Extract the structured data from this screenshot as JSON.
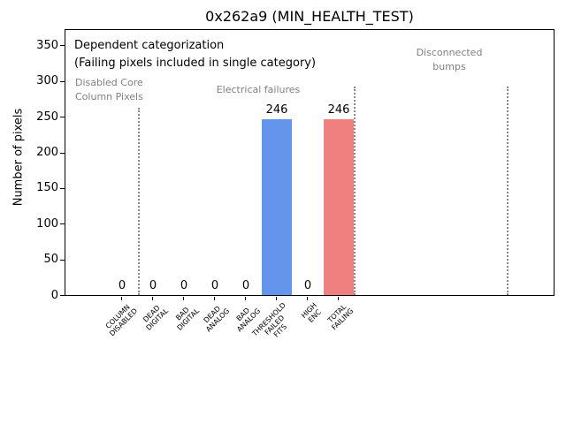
{
  "figure": {
    "title": "0x262a9 (MIN_HEALTH_TEST)",
    "ylabel": "Number of pixels"
  },
  "annotations": {
    "dependent": "Dependent categorization",
    "failing_note": "(Failing pixels included in single category)",
    "group_disabled": [
      "Disabled Core",
      "Column Pixels"
    ],
    "group_electrical": "Electrical failures",
    "group_disconnected": [
      "Disconnected",
      "bumps"
    ]
  },
  "chart_data": {
    "type": "bar",
    "title": "0x262a9 (MIN_HEALTH_TEST)",
    "xlabel": "",
    "ylabel": "Number of pixels",
    "categories": [
      "COLUMN DISABLED",
      "DEAD DIGITAL",
      "BAD DIGITAL",
      "DEAD ANALOG",
      "BAD ANALOG",
      "THRESHOLD FAILED FITS",
      "HIGH ENC",
      "TOTAL FAILING"
    ],
    "category_lines": [
      [
        "COLUMN",
        "DISABLED"
      ],
      [
        "DEAD",
        "DIGITAL"
      ],
      [
        "BAD",
        "DIGITAL"
      ],
      [
        "DEAD",
        "ANALOG"
      ],
      [
        "BAD",
        "ANALOG"
      ],
      [
        "THRESHOLD",
        "FAILED",
        "FITS"
      ],
      [
        "HIGH",
        "ENC"
      ],
      [
        "TOTAL",
        "FAILING"
      ]
    ],
    "values": [
      0,
      0,
      0,
      0,
      0,
      246,
      0,
      246
    ],
    "value_labels": [
      "0",
      "0",
      "0",
      "0",
      "0",
      "246",
      "0",
      "246"
    ],
    "bar_colors": [
      null,
      null,
      null,
      null,
      null,
      "#6495ED",
      null,
      "#F08080"
    ],
    "ylim": [
      0,
      350
    ],
    "yticks": [
      0,
      50,
      100,
      150,
      200,
      250,
      300,
      350
    ],
    "grid": false,
    "legend": "none",
    "groups": [
      {
        "label": "Disabled Core Column Pixels",
        "categories": [
          "COLUMN DISABLED"
        ]
      },
      {
        "label": "Electrical failures",
        "categories": [
          "DEAD DIGITAL",
          "BAD DIGITAL",
          "DEAD ANALOG",
          "BAD ANALOG",
          "THRESHOLD FAILED FITS",
          "HIGH ENC",
          "TOTAL FAILING"
        ]
      },
      {
        "label": "Disconnected bumps",
        "categories": []
      }
    ]
  },
  "colors": {
    "bar_blue": "#6495ED",
    "bar_red": "#F08080",
    "gray_text": "#808080",
    "separator": "#8a8a8a",
    "axis": "#000000",
    "background": "#ffffff"
  }
}
